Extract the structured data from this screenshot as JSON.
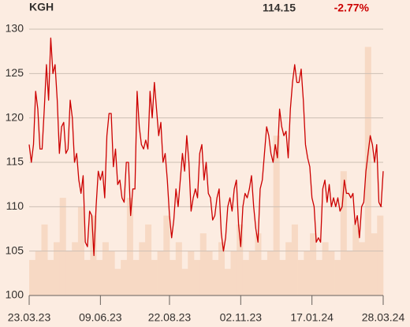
{
  "chart_data": {
    "type": "line",
    "title": "KGH",
    "price": "114.15",
    "change": "-2.77%",
    "color": "#cc0000",
    "change_color": "#cc0000",
    "xlim": [
      0,
      164
    ],
    "xticks": [
      {
        "value": 0,
        "label": "23.03.23"
      },
      {
        "value": 33,
        "label": "09.06.23"
      },
      {
        "value": 65,
        "label": "22.08.23"
      },
      {
        "value": 98,
        "label": "02.11.23"
      },
      {
        "value": 131,
        "label": "17.01.24"
      },
      {
        "value": 164,
        "label": "28.03.24"
      }
    ],
    "ylim": [
      100,
      130
    ],
    "yticks": [
      100,
      105,
      110,
      115,
      120,
      125,
      130
    ],
    "grid": true,
    "values": [
      117,
      115,
      117,
      123,
      121,
      116.5,
      116.5,
      121,
      126,
      122,
      129,
      125,
      126,
      122,
      116,
      119,
      119.5,
      116,
      116.5,
      122,
      120,
      115,
      116,
      113,
      111.5,
      113.5,
      106,
      105.5,
      109.5,
      109,
      104.5,
      110,
      114,
      113,
      114,
      111,
      118,
      120.5,
      120.5,
      114.5,
      116.5,
      112.5,
      113,
      111,
      110.5,
      115,
      115,
      109,
      112,
      112,
      123,
      119,
      117,
      116.5,
      117.5,
      116.5,
      123,
      120,
      124,
      121,
      118,
      119.5,
      115,
      116,
      113,
      109,
      106.5,
      108.5,
      112,
      110,
      113,
      116,
      114,
      118,
      115,
      109.5,
      111,
      112,
      111,
      116,
      117,
      113,
      115,
      111.5,
      111,
      108.5,
      109,
      111,
      112,
      107,
      105,
      106.5,
      110,
      111,
      109.5,
      112,
      113,
      108,
      105.5,
      110,
      111.5,
      111,
      112,
      113.5,
      110,
      107.5,
      106,
      112,
      113,
      116,
      119,
      118,
      116,
      115,
      117,
      115.5,
      121,
      119,
      118,
      118.5,
      115.5,
      121,
      124,
      126,
      124,
      124,
      125.5,
      122,
      117,
      115.5,
      114.5,
      111,
      110,
      106,
      106.5,
      106,
      112,
      113,
      110.5,
      112.5,
      110,
      111,
      110,
      111,
      109.5,
      110,
      113,
      111.5,
      111.5,
      111,
      111.5,
      108,
      109,
      106.5,
      110,
      110.5,
      114,
      116,
      118,
      117,
      115,
      117,
      110.5,
      110,
      114
    ],
    "volume": {
      "color": "#f7d9c4",
      "values": [
        104,
        105,
        108,
        104,
        106,
        111,
        105,
        106,
        110,
        104,
        109,
        104,
        106,
        105,
        103,
        104,
        111,
        104,
        106,
        108,
        104,
        105,
        109,
        104,
        106,
        103,
        105,
        104,
        107,
        105,
        104,
        106,
        103,
        105,
        108,
        104,
        105,
        107,
        104,
        105,
        118,
        104,
        106,
        108,
        104,
        105,
        107,
        104,
        106,
        105,
        104,
        114,
        105,
        108,
        106,
        128,
        107,
        109
      ]
    }
  }
}
